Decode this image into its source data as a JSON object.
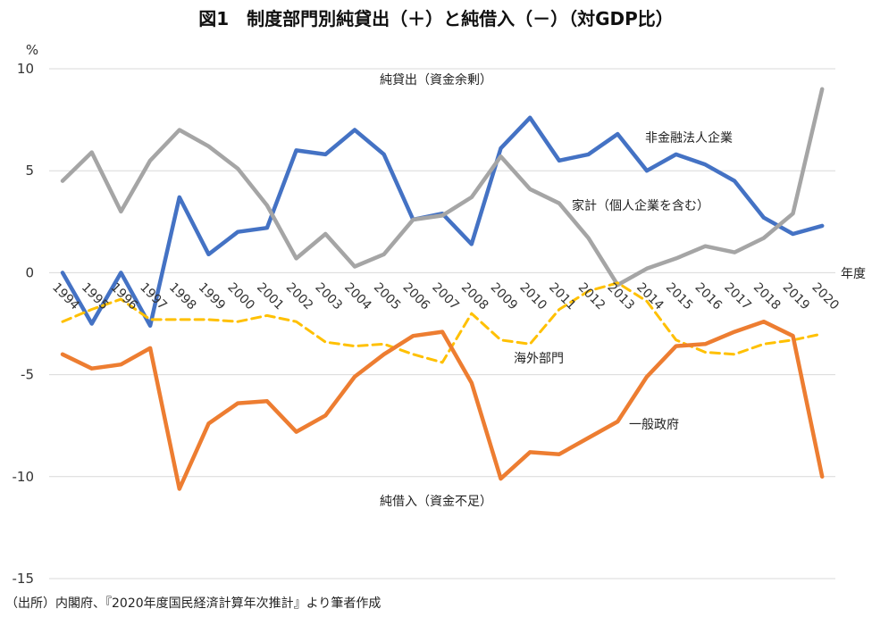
{
  "chart_data": {
    "type": "line",
    "title": "図1　制度部門別純貸出（＋）と純借入（－）（対GDP比）",
    "ylabel": "%",
    "xlabel": "年度",
    "ylim": [
      -15,
      10
    ],
    "yticks": [
      10,
      5,
      0,
      -5,
      -10,
      -15
    ],
    "grid": true,
    "x": [
      "1994",
      "1995",
      "1996",
      "1997",
      "1998",
      "1999",
      "2000",
      "2001",
      "2002",
      "2003",
      "2004",
      "2005",
      "2006",
      "2007",
      "2008",
      "2009",
      "2010",
      "2011",
      "2012",
      "2013",
      "2014",
      "2015",
      "2016",
      "2017",
      "2018",
      "2019",
      "2020"
    ],
    "series": [
      {
        "name": "非金融法人企業",
        "color": "#4472C4",
        "dash": false,
        "values": [
          0.0,
          -2.5,
          0.0,
          -2.6,
          3.7,
          0.9,
          2.0,
          2.2,
          6.0,
          5.8,
          7.0,
          5.8,
          2.6,
          2.9,
          1.4,
          6.1,
          7.6,
          5.5,
          5.8,
          6.8,
          5.0,
          5.8,
          5.3,
          4.5,
          2.7,
          1.9,
          2.3
        ]
      },
      {
        "name": "家計（個人企業を含む）",
        "color": "#A5A5A5",
        "dash": false,
        "values": [
          4.5,
          5.9,
          3.0,
          5.5,
          7.0,
          6.2,
          5.1,
          3.3,
          0.7,
          1.9,
          0.3,
          0.9,
          2.6,
          2.8,
          3.7,
          5.7,
          4.1,
          3.4,
          1.7,
          -0.6,
          0.2,
          0.7,
          1.3,
          1.0,
          1.7,
          2.9,
          9.0
        ]
      },
      {
        "name": "海外部門",
        "color": "#FFC000",
        "dash": true,
        "values": [
          -2.4,
          -1.8,
          -1.3,
          -2.3,
          -2.3,
          -2.3,
          -2.4,
          -2.1,
          -2.4,
          -3.4,
          -3.6,
          -3.5,
          -4.0,
          -4.4,
          -2.0,
          -3.3,
          -3.5,
          -1.8,
          -0.9,
          -0.5,
          -1.4,
          -3.3,
          -3.9,
          -4.0,
          -3.5,
          -3.3,
          -3.0
        ]
      },
      {
        "name": "一般政府",
        "color": "#ED7D31",
        "dash": false,
        "values": [
          -4.0,
          -4.7,
          -4.5,
          -3.7,
          -10.6,
          -7.4,
          -6.4,
          -6.3,
          -7.8,
          -7.0,
          -5.1,
          -4.0,
          -3.1,
          -2.9,
          -5.4,
          -10.1,
          -8.8,
          -8.9,
          -8.1,
          -7.3,
          -5.1,
          -3.6,
          -3.5,
          -2.9,
          -2.4,
          -3.1,
          -10.0
        ]
      }
    ],
    "annotations": {
      "lending": "純貸出（資金余剰）",
      "borrowing": "純借入（資金不足）"
    }
  },
  "source_note": "（出所）内閣府、『2020年度国民経済計算年次推計』より筆者作成"
}
